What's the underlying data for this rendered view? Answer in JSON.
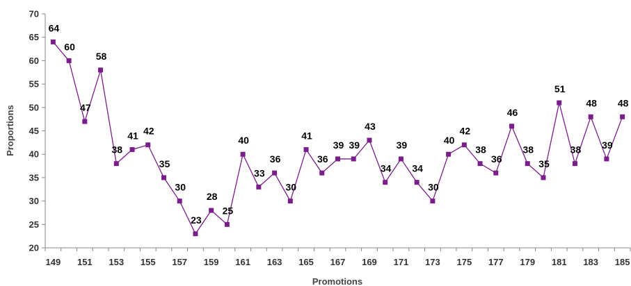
{
  "chart_data": {
    "type": "line",
    "xlabel": "Promotions",
    "ylabel": "Proportions",
    "ylim": [
      20,
      70
    ],
    "yticks": [
      20,
      25,
      30,
      35,
      40,
      45,
      50,
      55,
      60,
      65,
      70
    ],
    "x": [
      149,
      150,
      151,
      152,
      153,
      154,
      155,
      156,
      157,
      158,
      159,
      160,
      161,
      162,
      163,
      164,
      165,
      166,
      167,
      168,
      169,
      170,
      171,
      172,
      173,
      174,
      175,
      176,
      177,
      178,
      179,
      180,
      181,
      182,
      183,
      184,
      185
    ],
    "xtick_labels": [
      149,
      151,
      153,
      155,
      157,
      159,
      161,
      163,
      165,
      167,
      169,
      171,
      173,
      175,
      177,
      179,
      181,
      183,
      185
    ],
    "series": [
      {
        "values": [
          64,
          60,
          47,
          58,
          38,
          41,
          42,
          35,
          30,
          23,
          28,
          25,
          40,
          33,
          36,
          30,
          41,
          36,
          39,
          39,
          43,
          34,
          39,
          34,
          30,
          40,
          42,
          38,
          36,
          46,
          38,
          35,
          51,
          38,
          48,
          39,
          48
        ],
        "color": "#7B1E8C"
      }
    ],
    "grid": false
  }
}
